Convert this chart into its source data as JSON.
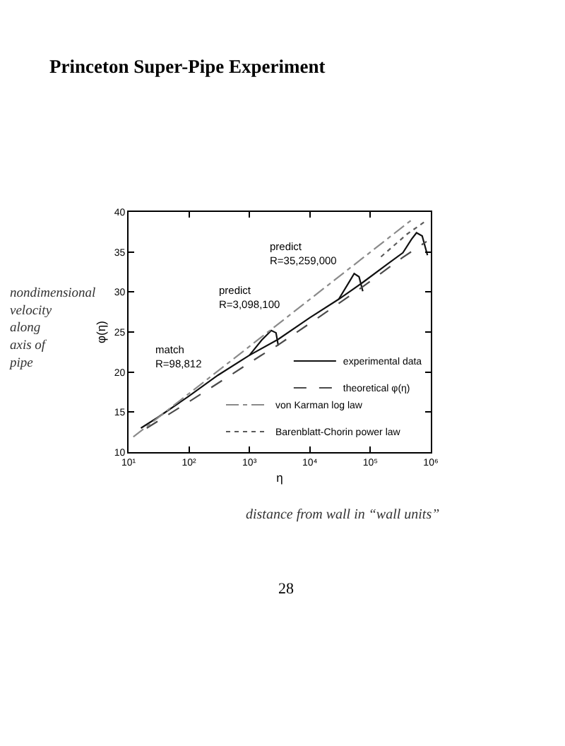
{
  "chart_data": {
    "type": "line",
    "title": "Princeton Super-Pipe Experiment",
    "xlabel": "η",
    "ylabel": "φ(η)",
    "log": "x",
    "xlim": [
      10,
      1000000
    ],
    "xticks": [
      {
        "value": 10,
        "label": "10¹"
      },
      {
        "value": 100,
        "label": "10²"
      },
      {
        "value": 1000,
        "label": "10³"
      },
      {
        "value": 10000,
        "label": "10⁴"
      },
      {
        "value": 100000,
        "label": "10⁵"
      },
      {
        "value": 1000000,
        "label": "10⁶"
      }
    ],
    "ylim": [
      10,
      40
    ],
    "yticks": [
      10,
      15,
      20,
      25,
      30,
      35,
      40
    ],
    "grid": false,
    "legend": "bottom right",
    "series": [
      {
        "name": "experimental data",
        "color": "#111111",
        "line_style": "solid",
        "x": [
          16,
          30,
          100,
          300,
          1000,
          3000,
          10000,
          30000,
          75000,
          200000,
          345000,
          480000,
          580000,
          720000,
          880000
        ],
        "values": [
          13.0,
          14.3,
          17.0,
          19.6,
          22.1,
          24.1,
          26.8,
          29.1,
          31.2,
          33.6,
          34.9,
          36.6,
          37.4,
          37.0,
          34.6
        ]
      },
      {
        "color": "#111111",
        "line_style": "solid",
        "x": [
          1000,
          1600,
          2300,
          2750,
          3000
        ],
        "values": [
          22.1,
          24.0,
          25.2,
          24.9,
          23.3
        ]
      },
      {
        "color": "#111111",
        "line_style": "solid",
        "x": [
          30000,
          45000,
          54000,
          65000,
          75000
        ],
        "values": [
          29.1,
          31.3,
          32.3,
          31.9,
          30.1
        ]
      },
      {
        "name": "theoretical φ(η)",
        "color": "#4a4a4a",
        "line_style": "dashed",
        "x": [
          20,
          100,
          400,
          1500,
          3000,
          15000,
          70000,
          340000,
          850000
        ],
        "values": [
          13.0,
          16.3,
          19.2,
          22.0,
          23.4,
          27.0,
          30.5,
          34.3,
          36.3
        ]
      },
      {
        "name": "von Karman log law",
        "color": "#8a8a8a",
        "line_style": "dashdot",
        "x": [
          12,
          1000,
          500000
        ],
        "values": [
          11.9,
          23.2,
          39.1
        ]
      },
      {
        "name": "Barenblatt-Chorin power law",
        "color": "#5a5a5a",
        "line_style": "dotted",
        "x": [
          150000,
          400000,
          800000
        ],
        "values": [
          34.4,
          37.2,
          38.8
        ]
      }
    ],
    "annotations": [
      "match R=98,812",
      "predict R=3,098,100",
      "predict R=35,259,000",
      "nondimensional velocity along axis of pipe",
      "distance from wall in “wall units”",
      "28"
    ]
  }
}
